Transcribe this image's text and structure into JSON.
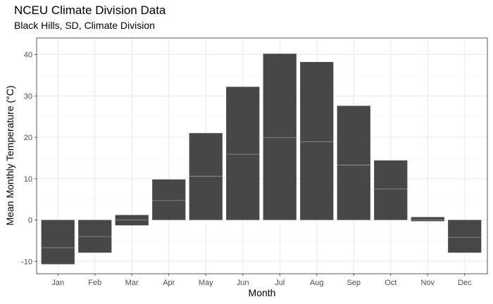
{
  "chart_data": {
    "type": "bar",
    "title": "NCEU Climate Division Data",
    "subtitle": "Black Hills, SD, Climate Division",
    "xlabel": "Month",
    "ylabel": "Mean Monthly Temperature (°C)",
    "categories": [
      "Jan",
      "Feb",
      "Mar",
      "Apr",
      "May",
      "Jun",
      "Jul",
      "Aug",
      "Sep",
      "Oct",
      "Nov",
      "Dec"
    ],
    "bars": [
      {
        "low": -10.7,
        "mid": -6.7,
        "high": 0
      },
      {
        "low": -7.9,
        "mid": -4.0,
        "high": 0
      },
      {
        "low": -1.3,
        "mid": 0.0,
        "high": 1.2
      },
      {
        "low": 0,
        "mid": 4.7,
        "high": 9.8
      },
      {
        "low": 0,
        "mid": 10.6,
        "high": 21.0
      },
      {
        "low": 0,
        "mid": 15.9,
        "high": 32.2
      },
      {
        "low": 0,
        "mid": 19.9,
        "high": 40.2
      },
      {
        "low": 0,
        "mid": 18.9,
        "high": 38.2
      },
      {
        "low": 0,
        "mid": 13.3,
        "high": 27.6
      },
      {
        "low": 0,
        "mid": 7.5,
        "high": 14.4
      },
      {
        "low": -0.3,
        "mid": 0.0,
        "high": 0.7
      },
      {
        "low": -7.9,
        "mid": -4.2,
        "high": 0
      }
    ],
    "ylim": [
      -13,
      44
    ],
    "yticks": [
      -10,
      0,
      10,
      20,
      30,
      40
    ],
    "grid": true,
    "legend": "none",
    "colors": {
      "bar": "#474747",
      "bar_line": "#9a9a9a",
      "grid_major": "#ebebeb",
      "grid_minor": "#f4f4f4",
      "frame": "#333333"
    }
  }
}
